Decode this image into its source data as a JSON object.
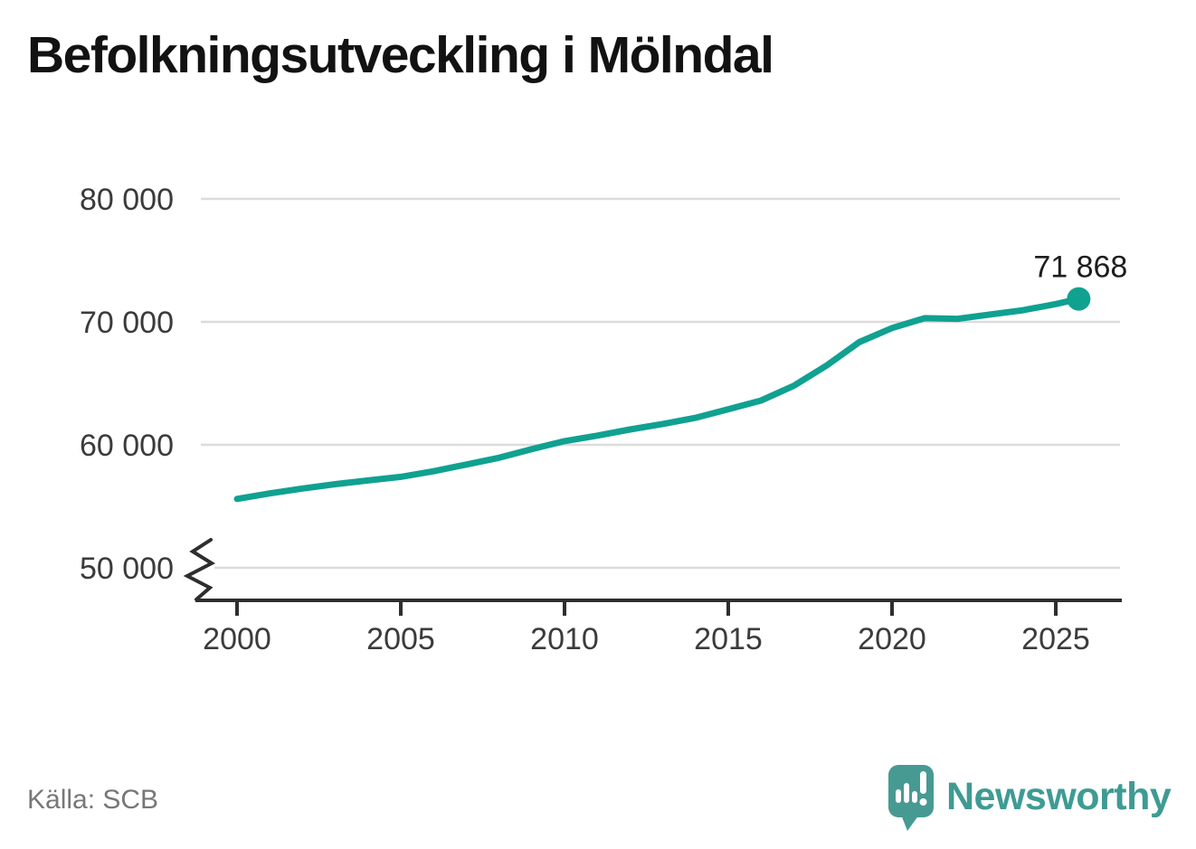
{
  "title": "Befolkningsutveckling i Mölndal",
  "source": {
    "label": "Källa: SCB"
  },
  "logo": {
    "text": "Newsworthy",
    "icon": "newsworthy-bubble-chart-icon",
    "icon_color": "#479a92",
    "text_color": "#3e9b93"
  },
  "chart_data": {
    "type": "line",
    "title": "Befolkningsutveckling i Mölndal",
    "xlabel": "",
    "ylabel": "",
    "grid": "horizontal",
    "legend_position": "none",
    "axis_break_below_min": true,
    "ylim": [
      50000,
      80000
    ],
    "xlim": [
      1999,
      2027
    ],
    "yticks": [
      {
        "value": 80000,
        "label": "80 000"
      },
      {
        "value": 70000,
        "label": "70 000"
      },
      {
        "value": 60000,
        "label": "60 000"
      },
      {
        "value": 50000,
        "label": "50 000"
      }
    ],
    "xticks": [
      {
        "value": 2000,
        "label": "2000"
      },
      {
        "value": 2005,
        "label": "2005"
      },
      {
        "value": 2010,
        "label": "2010"
      },
      {
        "value": 2015,
        "label": "2015"
      },
      {
        "value": 2020,
        "label": "2020"
      },
      {
        "value": 2025,
        "label": "2025"
      }
    ],
    "series": [
      {
        "name": "Befolkning",
        "color": "#10a191",
        "x": [
          2000,
          2001,
          2002,
          2003,
          2004,
          2005,
          2006,
          2007,
          2008,
          2009,
          2010,
          2011,
          2012,
          2013,
          2014,
          2015,
          2016,
          2017,
          2018,
          2019,
          2020,
          2021,
          2022,
          2023,
          2024,
          2025,
          2025.7
        ],
        "values": [
          55600,
          56050,
          56450,
          56800,
          57100,
          57400,
          57850,
          58400,
          58950,
          59650,
          60300,
          60750,
          61250,
          61700,
          62200,
          62900,
          63600,
          64800,
          66450,
          68350,
          69500,
          70300,
          70250,
          70600,
          70950,
          71450,
          71868
        ]
      }
    ],
    "end_point": {
      "x": 2025.7,
      "value": 71868,
      "label": "71 868"
    },
    "colors": {
      "line": "#10a191",
      "gridline": "#dcdcdc",
      "axis": "#2e2e2e",
      "tick_label": "#3b3b3b",
      "end_label": "#1d1d1d"
    }
  }
}
